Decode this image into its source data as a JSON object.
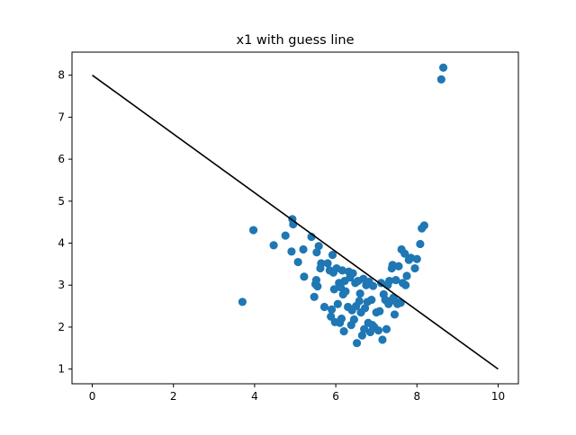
{
  "chart_data": {
    "type": "scatter",
    "title": "x1 with guess line",
    "xlabel": "",
    "ylabel": "",
    "xlim": [
      -0.5,
      10.5
    ],
    "ylim": [
      0.65,
      8.55
    ],
    "xticks": [
      0,
      2,
      4,
      6,
      8,
      10
    ],
    "yticks": [
      1,
      2,
      3,
      4,
      5,
      6,
      7,
      8
    ],
    "grid": false,
    "legend": "none",
    "point_color": "#1f77b4",
    "line_color": "#000000",
    "guess_line": {
      "x": [
        0,
        10
      ],
      "y": [
        8,
        1
      ]
    },
    "points": [
      {
        "x": 3.7,
        "y": 2.6
      },
      {
        "x": 3.97,
        "y": 4.31
      },
      {
        "x": 4.47,
        "y": 3.95
      },
      {
        "x": 4.76,
        "y": 4.18
      },
      {
        "x": 4.91,
        "y": 3.8
      },
      {
        "x": 4.93,
        "y": 4.57
      },
      {
        "x": 4.95,
        "y": 4.45
      },
      {
        "x": 5.07,
        "y": 3.55
      },
      {
        "x": 5.2,
        "y": 3.85
      },
      {
        "x": 5.22,
        "y": 3.2
      },
      {
        "x": 5.4,
        "y": 4.15
      },
      {
        "x": 5.47,
        "y": 2.72
      },
      {
        "x": 5.5,
        "y": 3.02
      },
      {
        "x": 5.52,
        "y": 3.12
      },
      {
        "x": 5.53,
        "y": 3.78
      },
      {
        "x": 5.55,
        "y": 2.97
      },
      {
        "x": 5.58,
        "y": 3.93
      },
      {
        "x": 5.62,
        "y": 3.4
      },
      {
        "x": 5.64,
        "y": 3.52
      },
      {
        "x": 5.72,
        "y": 2.48
      },
      {
        "x": 5.8,
        "y": 3.52
      },
      {
        "x": 5.85,
        "y": 3.35
      },
      {
        "x": 5.88,
        "y": 2.25
      },
      {
        "x": 5.9,
        "y": 2.42
      },
      {
        "x": 5.92,
        "y": 3.72
      },
      {
        "x": 5.94,
        "y": 3.3
      },
      {
        "x": 5.96,
        "y": 2.9
      },
      {
        "x": 5.98,
        "y": 2.12
      },
      {
        "x": 6.02,
        "y": 3.4
      },
      {
        "x": 6.05,
        "y": 2.55
      },
      {
        "x": 6.08,
        "y": 3.05
      },
      {
        "x": 6.1,
        "y": 2.1
      },
      {
        "x": 6.12,
        "y": 2.95
      },
      {
        "x": 6.14,
        "y": 2.2
      },
      {
        "x": 6.16,
        "y": 3.35
      },
      {
        "x": 6.18,
        "y": 2.78
      },
      {
        "x": 6.2,
        "y": 1.9
      },
      {
        "x": 6.22,
        "y": 3.1
      },
      {
        "x": 6.24,
        "y": 2.85
      },
      {
        "x": 6.3,
        "y": 2.48
      },
      {
        "x": 6.32,
        "y": 3.32
      },
      {
        "x": 6.35,
        "y": 3.18
      },
      {
        "x": 6.38,
        "y": 2.05
      },
      {
        "x": 6.4,
        "y": 2.4
      },
      {
        "x": 6.42,
        "y": 3.28
      },
      {
        "x": 6.45,
        "y": 2.18
      },
      {
        "x": 6.48,
        "y": 3.05
      },
      {
        "x": 6.5,
        "y": 2.5
      },
      {
        "x": 6.52,
        "y": 1.62
      },
      {
        "x": 6.55,
        "y": 3.1
      },
      {
        "x": 6.58,
        "y": 2.62
      },
      {
        "x": 6.6,
        "y": 2.8
      },
      {
        "x": 6.62,
        "y": 2.35
      },
      {
        "x": 6.65,
        "y": 1.8
      },
      {
        "x": 6.68,
        "y": 3.15
      },
      {
        "x": 6.7,
        "y": 1.95
      },
      {
        "x": 6.72,
        "y": 2.45
      },
      {
        "x": 6.75,
        "y": 3.0
      },
      {
        "x": 6.78,
        "y": 2.6
      },
      {
        "x": 6.8,
        "y": 2.1
      },
      {
        "x": 6.82,
        "y": 3.08
      },
      {
        "x": 6.85,
        "y": 1.88
      },
      {
        "x": 6.88,
        "y": 2.65
      },
      {
        "x": 6.9,
        "y": 2.05
      },
      {
        "x": 6.92,
        "y": 2.98
      },
      {
        "x": 6.95,
        "y": 2.0
      },
      {
        "x": 7.0,
        "y": 2.35
      },
      {
        "x": 7.05,
        "y": 1.92
      },
      {
        "x": 7.08,
        "y": 2.38
      },
      {
        "x": 7.12,
        "y": 3.05
      },
      {
        "x": 7.15,
        "y": 1.7
      },
      {
        "x": 7.18,
        "y": 2.78
      },
      {
        "x": 7.22,
        "y": 2.65
      },
      {
        "x": 7.25,
        "y": 1.95
      },
      {
        "x": 7.28,
        "y": 3.0
      },
      {
        "x": 7.3,
        "y": 2.55
      },
      {
        "x": 7.32,
        "y": 3.1
      },
      {
        "x": 7.35,
        "y": 2.62
      },
      {
        "x": 7.38,
        "y": 3.4
      },
      {
        "x": 7.4,
        "y": 3.48
      },
      {
        "x": 7.42,
        "y": 2.7
      },
      {
        "x": 7.45,
        "y": 2.3
      },
      {
        "x": 7.48,
        "y": 3.12
      },
      {
        "x": 7.5,
        "y": 2.6
      },
      {
        "x": 7.52,
        "y": 2.55
      },
      {
        "x": 7.55,
        "y": 3.45
      },
      {
        "x": 7.6,
        "y": 2.58
      },
      {
        "x": 7.62,
        "y": 3.85
      },
      {
        "x": 7.65,
        "y": 3.05
      },
      {
        "x": 7.7,
        "y": 3.75
      },
      {
        "x": 7.72,
        "y": 3.0
      },
      {
        "x": 7.75,
        "y": 3.22
      },
      {
        "x": 7.8,
        "y": 3.6
      },
      {
        "x": 7.85,
        "y": 3.65
      },
      {
        "x": 7.95,
        "y": 3.4
      },
      {
        "x": 8.0,
        "y": 3.62
      },
      {
        "x": 8.08,
        "y": 3.98
      },
      {
        "x": 8.12,
        "y": 4.35
      },
      {
        "x": 8.18,
        "y": 4.42
      },
      {
        "x": 8.6,
        "y": 7.9
      },
      {
        "x": 8.65,
        "y": 8.18
      }
    ]
  }
}
